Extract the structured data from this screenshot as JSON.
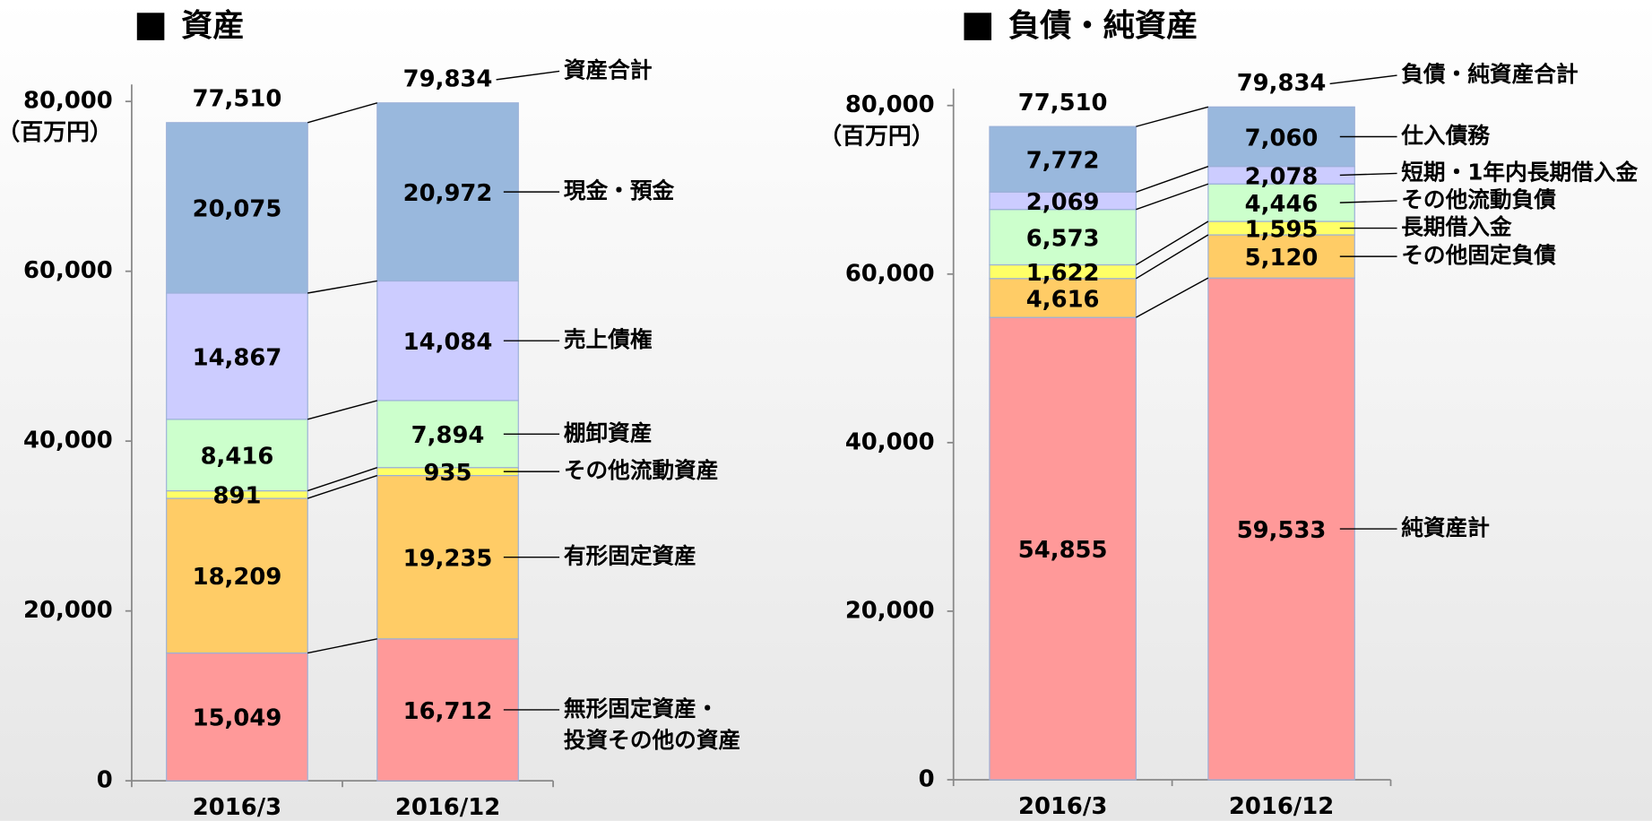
{
  "chart_data": [
    {
      "type": "bar",
      "stacked": true,
      "title": "資産",
      "y_unit": "（百万円）",
      "categories": [
        "2016/3",
        "2016/12"
      ],
      "ylim": [
        0,
        82000
      ],
      "yticks": [
        0,
        {
          "value": 20000,
          "label": "20,000"
        },
        {
          "value": 40000,
          "label": "40,000"
        },
        {
          "value": 60000,
          "label": "60,000"
        },
        {
          "value": 80000,
          "label": "80,000"
        }
      ],
      "series": [
        {
          "name": "無形固定資産・\n投資その他の資産",
          "color": "#ff9999",
          "values": [
            15049,
            16712
          ],
          "value_labels": [
            "15,049",
            "16,712"
          ]
        },
        {
          "name": "有形固定資産",
          "color": "#ffcc66",
          "values": [
            18209,
            19235
          ],
          "value_labels": [
            "18,209",
            "19,235"
          ]
        },
        {
          "name": "その他流動資産",
          "color": "#ffff66",
          "values": [
            891,
            935
          ],
          "value_labels": [
            "891",
            "935"
          ]
        },
        {
          "name": "棚卸資産",
          "color": "#ccffcc",
          "values": [
            8416,
            7894
          ],
          "value_labels": [
            "8,416",
            "7,894"
          ]
        },
        {
          "name": "売上債権",
          "color": "#ccccff",
          "values": [
            14867,
            14084
          ],
          "value_labels": [
            "14,867",
            "14,084"
          ]
        },
        {
          "name": "現金・預金",
          "color": "#99b8dd",
          "values": [
            20075,
            20972
          ],
          "value_labels": [
            "20,075",
            "20,972"
          ]
        }
      ],
      "totals": {
        "name": "資産合計",
        "values": [
          77510,
          79834
        ],
        "value_labels": [
          "77,510",
          "79,834"
        ]
      }
    },
    {
      "type": "bar",
      "stacked": true,
      "title": "負債・純資産",
      "y_unit": "（百万円）",
      "categories": [
        "2016/3",
        "2016/12"
      ],
      "ylim": [
        0,
        82000
      ],
      "yticks": [
        0,
        {
          "value": 20000,
          "label": "20,000"
        },
        {
          "value": 40000,
          "label": "40,000"
        },
        {
          "value": 60000,
          "label": "60,000"
        },
        {
          "value": 80000,
          "label": "80,000"
        }
      ],
      "series": [
        {
          "name": "純資産計",
          "color": "#ff9999",
          "values": [
            54855,
            59533
          ],
          "value_labels": [
            "54,855",
            "59,533"
          ]
        },
        {
          "name": "その他固定負債",
          "color": "#ffcc66",
          "values": [
            4616,
            5120
          ],
          "value_labels": [
            "4,616",
            "5,120"
          ]
        },
        {
          "name": "長期借入金",
          "color": "#ffff66",
          "values": [
            1622,
            1595
          ],
          "value_labels": [
            "1,622",
            "1,595"
          ]
        },
        {
          "name": "その他流動負債",
          "color": "#ccffcc",
          "values": [
            6573,
            4446
          ],
          "value_labels": [
            "6,573",
            "4,446"
          ]
        },
        {
          "name": "短期・1年内長期借入金",
          "color": "#ccccff",
          "values": [
            2069,
            2078
          ],
          "value_labels": [
            "2,069",
            "2,078"
          ]
        },
        {
          "name": "仕入債務",
          "color": "#99b8dd",
          "values": [
            7772,
            7060
          ],
          "value_labels": [
            "7,772",
            "7,060"
          ]
        }
      ],
      "totals": {
        "name": "負債・純資産合計",
        "values": [
          77510,
          79834
        ],
        "value_labels": [
          "77,510",
          "79,834"
        ]
      }
    }
  ]
}
